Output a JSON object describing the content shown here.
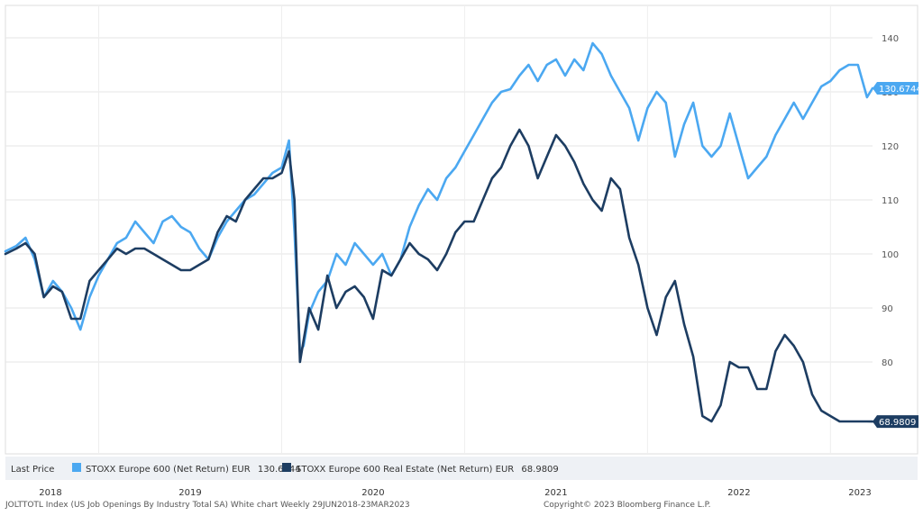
{
  "chart_data": {
    "type": "line",
    "title": "",
    "xlabel": "",
    "ylabel": "",
    "ylim": [
      63,
      146
    ],
    "y_ticks": [
      80,
      90,
      100,
      110,
      120,
      130,
      140
    ],
    "y_tick_labels": [
      "80",
      "90",
      "100",
      "110",
      "120",
      "130",
      "140"
    ],
    "x_start": 2018.49,
    "x_end": 2023.23,
    "x_ticks": [
      2018,
      2019,
      2020,
      2021,
      2022,
      2023
    ],
    "x_tick_labels": [
      "2018",
      "2019",
      "2020",
      "2021",
      "2022",
      "2023"
    ],
    "grid": true,
    "legend_placement": "bottom",
    "legend_prefix": "Last Price",
    "footer_left": "JOLTTOTL Index (US Job Openings By Industry Total SA) White chart  Weekly 29JUN2018-23MAR2023",
    "footer_right": "Copyright© 2023 Bloomberg Finance L.P.",
    "series": [
      {
        "name": "STOXX Europe 600 (Net Return) EUR",
        "last_value": "130.6744",
        "color": "#4ba8f1",
        "x": [
          2018.49,
          2018.55,
          2018.6,
          2018.65,
          2018.7,
          2018.75,
          2018.8,
          2018.85,
          2018.9,
          2018.95,
          2019.0,
          2019.05,
          2019.1,
          2019.15,
          2019.2,
          2019.25,
          2019.3,
          2019.35,
          2019.4,
          2019.45,
          2019.5,
          2019.55,
          2019.6,
          2019.65,
          2019.7,
          2019.75,
          2019.8,
          2019.85,
          2019.9,
          2019.95,
          2020.0,
          2020.04,
          2020.07,
          2020.1,
          2020.12,
          2020.15,
          2020.2,
          2020.25,
          2020.3,
          2020.35,
          2020.4,
          2020.45,
          2020.5,
          2020.55,
          2020.6,
          2020.65,
          2020.7,
          2020.75,
          2020.8,
          2020.85,
          2020.9,
          2020.95,
          2021.0,
          2021.05,
          2021.1,
          2021.15,
          2021.2,
          2021.25,
          2021.3,
          2021.35,
          2021.4,
          2021.45,
          2021.5,
          2021.55,
          2021.6,
          2021.65,
          2021.7,
          2021.75,
          2021.8,
          2021.85,
          2021.9,
          2021.95,
          2022.0,
          2022.05,
          2022.1,
          2022.15,
          2022.2,
          2022.25,
          2022.3,
          2022.35,
          2022.4,
          2022.45,
          2022.5,
          2022.55,
          2022.6,
          2022.65,
          2022.7,
          2022.75,
          2022.8,
          2022.85,
          2022.9,
          2022.95,
          2023.0,
          2023.05,
          2023.1,
          2023.15,
          2023.2,
          2023.23
        ],
        "y": [
          100.5,
          101.5,
          103,
          99,
          92,
          95,
          93,
          90,
          86,
          92,
          96,
          99,
          102,
          103,
          106,
          104,
          102,
          106,
          107,
          105,
          104,
          101,
          99,
          103,
          106,
          108,
          110,
          111,
          113,
          115,
          116,
          121,
          104,
          82,
          83,
          89,
          93,
          95,
          100,
          98,
          102,
          100,
          98,
          100,
          96,
          99,
          105,
          109,
          112,
          110,
          114,
          116,
          119,
          122,
          125,
          128,
          130,
          130.5,
          133,
          135,
          132,
          135,
          136,
          133,
          136,
          134,
          139,
          137,
          133,
          130,
          127,
          121,
          127,
          130,
          128,
          118,
          124,
          128,
          120,
          118,
          120,
          126,
          120,
          114,
          116,
          118,
          122,
          125,
          128,
          125,
          128,
          131,
          132,
          134,
          135,
          135,
          129,
          130.67
        ]
      },
      {
        "name": "STOXX Europe 600 Real Estate (Net Return) EUR",
        "last_value": "68.9809",
        "color": "#1d3d62",
        "x": [
          2018.49,
          2018.55,
          2018.6,
          2018.65,
          2018.7,
          2018.75,
          2018.8,
          2018.85,
          2018.9,
          2018.95,
          2019.0,
          2019.05,
          2019.1,
          2019.15,
          2019.2,
          2019.25,
          2019.3,
          2019.35,
          2019.4,
          2019.45,
          2019.5,
          2019.55,
          2019.6,
          2019.65,
          2019.7,
          2019.75,
          2019.8,
          2019.85,
          2019.9,
          2019.95,
          2020.0,
          2020.04,
          2020.07,
          2020.1,
          2020.12,
          2020.15,
          2020.2,
          2020.25,
          2020.3,
          2020.35,
          2020.4,
          2020.45,
          2020.5,
          2020.55,
          2020.6,
          2020.65,
          2020.7,
          2020.75,
          2020.8,
          2020.85,
          2020.9,
          2020.95,
          2021.0,
          2021.05,
          2021.1,
          2021.15,
          2021.2,
          2021.25,
          2021.3,
          2021.35,
          2021.4,
          2021.45,
          2021.5,
          2021.55,
          2021.6,
          2021.65,
          2021.7,
          2021.75,
          2021.8,
          2021.85,
          2021.9,
          2021.95,
          2022.0,
          2022.05,
          2022.1,
          2022.15,
          2022.2,
          2022.25,
          2022.3,
          2022.35,
          2022.4,
          2022.45,
          2022.5,
          2022.55,
          2022.6,
          2022.65,
          2022.7,
          2022.75,
          2022.8,
          2022.85,
          2022.9,
          2022.95,
          2023.0,
          2023.05,
          2023.1,
          2023.15,
          2023.2,
          2023.23
        ],
        "y": [
          100,
          101,
          102,
          100,
          92,
          94,
          93,
          88,
          88,
          95,
          97,
          99,
          101,
          100,
          101,
          101,
          100,
          99,
          98,
          97,
          97,
          98,
          99,
          104,
          107,
          106,
          110,
          112,
          114,
          114,
          115,
          119,
          110,
          80,
          84,
          90,
          86,
          96,
          90,
          93,
          94,
          92,
          88,
          97,
          96,
          99,
          102,
          100,
          99,
          97,
          100,
          104,
          106,
          106,
          110,
          114,
          116,
          120,
          123,
          120,
          114,
          118,
          122,
          120,
          117,
          113,
          110,
          108,
          114,
          112,
          103,
          98,
          90,
          85,
          92,
          95,
          87,
          81,
          70,
          69,
          72,
          80,
          79,
          79,
          75,
          75,
          82,
          85,
          83,
          80,
          74,
          71,
          70,
          69,
          69,
          69,
          69,
          68.98
        ]
      }
    ]
  }
}
